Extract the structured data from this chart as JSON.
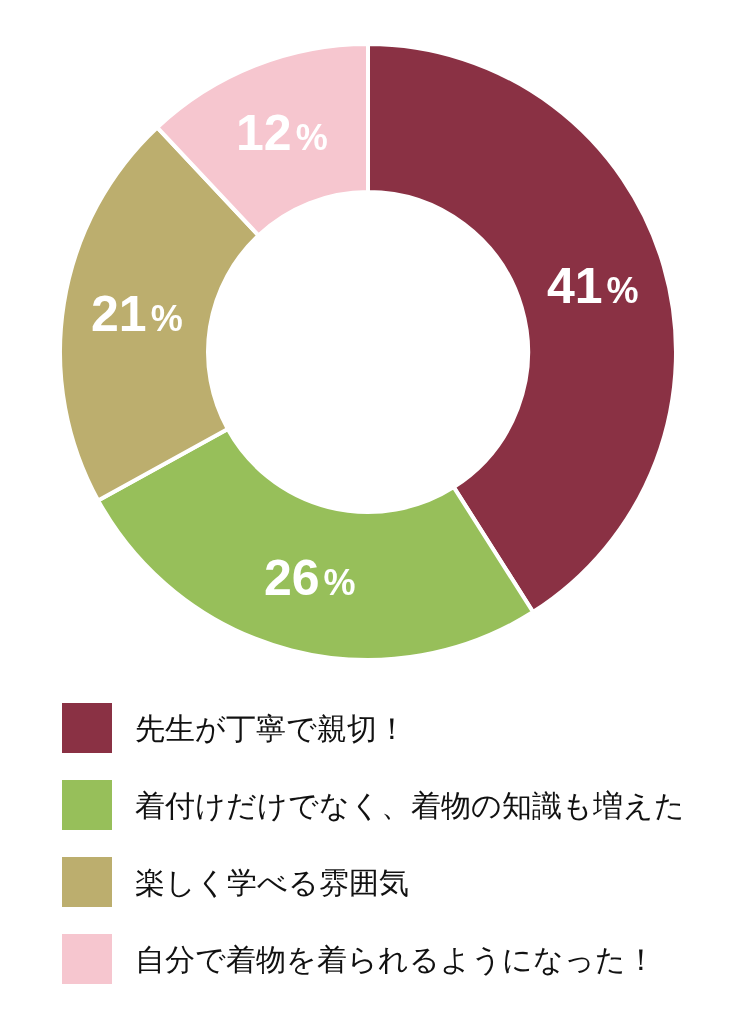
{
  "chart_data": {
    "type": "donut",
    "categories": [
      "先生が丁寧で親切！",
      "着付けだけでなく、着物の知識も増えた",
      "楽しく学べる雰囲気",
      "自分で着物を着られるようになった！"
    ],
    "values": [
      41,
      26,
      21,
      12
    ],
    "colors": [
      "#8a3144",
      "#97bf5a",
      "#bcae6e",
      "#f6c6cf"
    ],
    "value_labels": [
      "41%",
      "26%",
      "21%",
      "12%"
    ],
    "legend": "bottom"
  }
}
